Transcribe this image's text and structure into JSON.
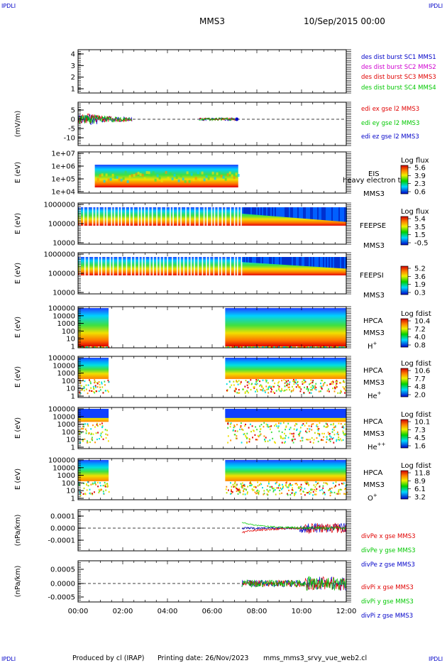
{
  "header": {
    "corner_label": "IPDLI",
    "spacecraft": "MMS3",
    "date": "10/Sep/2015 00:00"
  },
  "footer": {
    "produced_by": "Produced by cl (IRAP)",
    "printing_date": "Printing date: 26/Nov/2023",
    "filename": "mms_mms3_srvy_vue_web2.cl"
  },
  "colors": {
    "red": "#e00000",
    "green": "#00c800",
    "blue": "#0000c8",
    "magenta": "#d000d0"
  },
  "chart_data": [
    {
      "type": "line",
      "xlim": [
        "00:00",
        "12:00"
      ],
      "x_ticks": [
        "00:00",
        "02:00",
        "04:00",
        "06:00",
        "08:00",
        "10:00",
        "12:00"
      ],
      "ylim": [
        0.5,
        4.5
      ],
      "y_ticks": [
        "4",
        "3",
        "2",
        "1"
      ],
      "ylabel": "",
      "legend": [
        {
          "text": "des dist burst SC1 MMS1",
          "color": "#0000c8"
        },
        {
          "text": "des dist burst SC2 MMS2",
          "color": "#d000d0"
        },
        {
          "text": "des dist burst SC3 MMS3",
          "color": "#e00000"
        },
        {
          "text": "des dist burst SC4 MMS4",
          "color": "#00c800"
        }
      ]
    },
    {
      "type": "line",
      "xlim": [
        "00:00",
        "12:00"
      ],
      "ylim": [
        -12,
        8
      ],
      "y_ticks": [
        "5",
        "0",
        "-5",
        "-10"
      ],
      "ylabel": "(mV/m)",
      "zero_line": true,
      "legend": [
        {
          "text": "edi ex gse l2 MMS3",
          "color": "#e00000"
        },
        {
          "text": "edi ey gse l2 MMS3",
          "color": "#00c800"
        },
        {
          "text": "edi ez gse l2 MMS3",
          "color": "#0000c8"
        }
      ],
      "data_intervals": [
        [
          "00:00",
          "02:25"
        ],
        [
          "05:25",
          "07:10"
        ]
      ]
    },
    {
      "type": "heatmap",
      "ylabel": "E (eV)",
      "y_ticks": [
        "1e+07",
        "1e+06",
        "1e+05",
        "1e+04"
      ],
      "instrument": "EIS",
      "sc": "MMS3",
      "overlap_text": "heavy electron to",
      "colorbar": {
        "title": "Log flux",
        "ticks": [
          "5.6",
          "3.9",
          "2.3",
          "0.6"
        ]
      },
      "data_intervals": [
        [
          "00:45",
          "07:10"
        ]
      ]
    },
    {
      "type": "heatmap",
      "ylabel": "E (eV)",
      "y_ticks": [
        "1000000",
        "100000",
        "10000"
      ],
      "instrument": "FEEPSE",
      "sc": "MMS3",
      "colorbar": {
        "title": "Log flux",
        "ticks": [
          "5.4",
          "3.5",
          "1.5",
          "-0.5"
        ]
      },
      "data_intervals": [
        [
          "00:00",
          "12:00"
        ]
      ]
    },
    {
      "type": "heatmap",
      "ylabel": "E (eV)",
      "y_ticks": [
        "1000000",
        "100000",
        "10000"
      ],
      "instrument": "FEEPSI",
      "sc": "MMS3",
      "colorbar": {
        "title": "",
        "ticks": [
          "5.2",
          "3.6",
          "1.9",
          "0.3"
        ]
      },
      "data_intervals": [
        [
          "00:00",
          "12:00"
        ]
      ]
    },
    {
      "type": "heatmap",
      "ylabel": "E (eV)",
      "y_ticks": [
        "100000",
        "10000",
        "1000",
        "100",
        "10",
        "1"
      ],
      "instrument": "HPCA",
      "sc": "MMS3",
      "species": "H",
      "species_sup": "+",
      "colorbar": {
        "title": "Log fdist",
        "ticks": [
          "10.4",
          "7.2",
          "4.0",
          "0.8"
        ]
      },
      "data_intervals": [
        [
          "00:00",
          "01:22"
        ],
        [
          "06:35",
          "12:00"
        ]
      ]
    },
    {
      "type": "heatmap",
      "ylabel": "E (eV)",
      "y_ticks": [
        "100000",
        "10000",
        "1000",
        "100",
        "10",
        "1"
      ],
      "instrument": "HPCA",
      "sc": "MMS3",
      "species": "He",
      "species_sup": "+",
      "colorbar": {
        "title": "Log fdist",
        "ticks": [
          "10.6",
          "7.7",
          "4.8",
          "2.0"
        ]
      },
      "data_intervals": [
        [
          "00:00",
          "01:22"
        ],
        [
          "06:35",
          "12:00"
        ]
      ]
    },
    {
      "type": "heatmap",
      "ylabel": "E (eV)",
      "y_ticks": [
        "100000",
        "10000",
        "1000",
        "100",
        "10",
        "1"
      ],
      "instrument": "HPCA",
      "sc": "MMS3",
      "species": "He",
      "species_sup": "++",
      "colorbar": {
        "title": "Log fdist",
        "ticks": [
          "10.1",
          "7.3",
          "4.5",
          "1.6"
        ]
      },
      "data_intervals": [
        [
          "00:00",
          "01:22"
        ],
        [
          "06:35",
          "12:00"
        ]
      ]
    },
    {
      "type": "heatmap",
      "ylabel": "E (eV)",
      "y_ticks": [
        "100000",
        "10000",
        "1000",
        "100",
        "10",
        "1"
      ],
      "instrument": "HPCA",
      "sc": "MMS3",
      "species": "O",
      "species_sup": "+",
      "colorbar": {
        "title": "Log fdist",
        "ticks": [
          "11.8",
          "8.9",
          "6.1",
          "3.2"
        ]
      },
      "data_intervals": [
        [
          "00:00",
          "01:22"
        ],
        [
          "06:35",
          "12:00"
        ]
      ]
    },
    {
      "type": "line",
      "ylabel": "(nPa/km)",
      "ylim": [
        -0.00016,
        0.00016
      ],
      "y_ticks": [
        "0.0001",
        "0.0000",
        "-0.0001"
      ],
      "zero_line": true,
      "legend": [
        {
          "text": "divPe x gse MMS3",
          "color": "#e00000"
        },
        {
          "text": "divPe y gse MMS3",
          "color": "#00c800"
        },
        {
          "text": "divPe z gse MMS3",
          "color": "#0000c8"
        }
      ],
      "data_intervals": [
        [
          "07:20",
          "12:00"
        ]
      ]
    },
    {
      "type": "line",
      "ylabel": "(nPa/km)",
      "ylim": [
        -0.0008,
        0.0008
      ],
      "y_ticks": [
        "0.0005",
        "0.0000",
        "-0.0005"
      ],
      "zero_line": true,
      "legend": [
        {
          "text": "divPi x gse MMS3",
          "color": "#e00000"
        },
        {
          "text": "divPi y gse MMS3",
          "color": "#00c800"
        },
        {
          "text": "divPi z gse MMS3",
          "color": "#0000c8"
        }
      ],
      "data_intervals": [
        [
          "07:20",
          "12:00"
        ]
      ]
    }
  ]
}
